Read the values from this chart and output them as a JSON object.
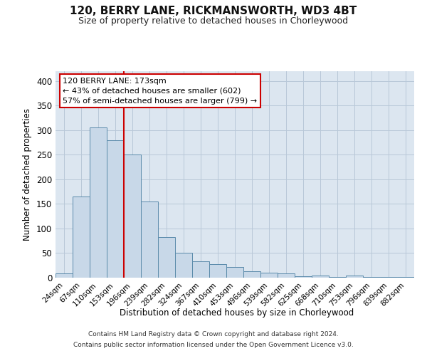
{
  "title": "120, BERRY LANE, RICKMANSWORTH, WD3 4BT",
  "subtitle": "Size of property relative to detached houses in Chorleywood",
  "xlabel": "Distribution of detached houses by size in Chorleywood",
  "ylabel": "Number of detached properties",
  "footer_line1": "Contains HM Land Registry data © Crown copyright and database right 2024.",
  "footer_line2": "Contains public sector information licensed under the Open Government Licence v3.0.",
  "annotation_line1": "120 BERRY LANE: 173sqm",
  "annotation_line2": "← 43% of detached houses are smaller (602)",
  "annotation_line3": "57% of semi-detached houses are larger (799) →",
  "bar_labels": [
    "24sqm",
    "67sqm",
    "110sqm",
    "153sqm",
    "196sqm",
    "239sqm",
    "282sqm",
    "324sqm",
    "367sqm",
    "410sqm",
    "453sqm",
    "496sqm",
    "539sqm",
    "582sqm",
    "625sqm",
    "668sqm",
    "710sqm",
    "753sqm",
    "796sqm",
    "839sqm",
    "882sqm"
  ],
  "bar_values": [
    8,
    165,
    305,
    280,
    250,
    155,
    83,
    50,
    33,
    27,
    22,
    13,
    10,
    8,
    3,
    5,
    2,
    4,
    2,
    1,
    2
  ],
  "bar_color": "#c8d8e8",
  "bar_edgecolor": "#5a8aaa",
  "vline_x": 3.5,
  "vline_color": "#cc0000",
  "annotation_box_color": "#cc0000",
  "axes_bg_color": "#dce6f0",
  "background_color": "#ffffff",
  "grid_color": "#b8c8d8",
  "ylim": [
    0,
    420
  ],
  "yticks": [
    0,
    50,
    100,
    150,
    200,
    250,
    300,
    350,
    400
  ]
}
